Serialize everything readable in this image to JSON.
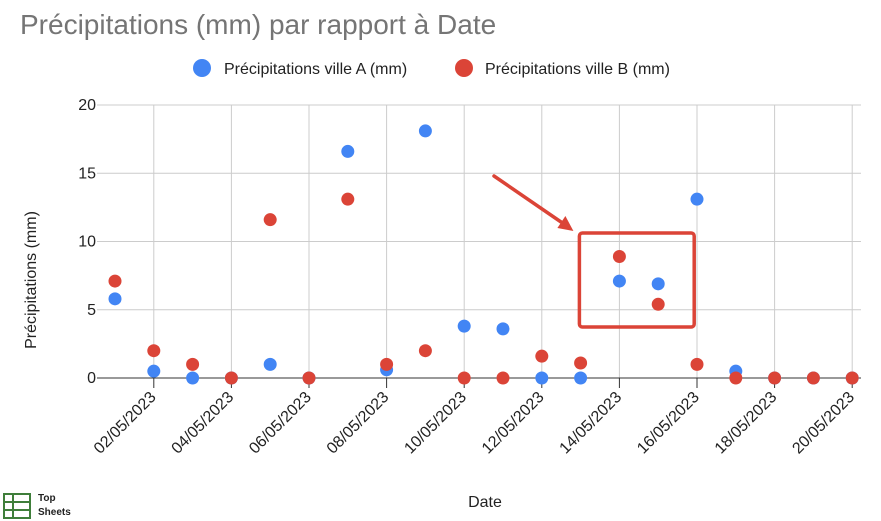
{
  "chart_data": {
    "type": "scatter",
    "title": "Précipitations (mm) par rapport à Date",
    "xlabel": "Date",
    "ylabel": "Précipitations (mm)",
    "ylim": [
      0,
      20
    ],
    "yticks": [
      0,
      5,
      10,
      15,
      20
    ],
    "xticks": [
      "02/05/2023",
      "04/05/2023",
      "06/05/2023",
      "08/05/2023",
      "10/05/2023",
      "12/05/2023",
      "14/05/2023",
      "16/05/2023",
      "18/05/2023",
      "20/05/2023"
    ],
    "x": [
      "01/05/2023",
      "02/05/2023",
      "03/05/2023",
      "04/05/2023",
      "05/05/2023",
      "06/05/2023",
      "07/05/2023",
      "08/05/2023",
      "09/05/2023",
      "10/05/2023",
      "11/05/2023",
      "12/05/2023",
      "13/05/2023",
      "14/05/2023",
      "15/05/2023",
      "16/05/2023",
      "17/05/2023",
      "18/05/2023",
      "19/05/2023",
      "20/05/2023"
    ],
    "series": [
      {
        "name": "Précipitations ville A (mm)",
        "color": "#4285f4",
        "values": [
          5.8,
          0.5,
          0.0,
          0.0,
          1.0,
          0.0,
          16.6,
          0.6,
          18.1,
          3.8,
          3.6,
          0.0,
          0.0,
          7.1,
          6.9,
          13.1,
          0.5,
          0.0,
          0.0,
          0.0
        ]
      },
      {
        "name": "Précipitations ville B (mm)",
        "color": "#db4437",
        "values": [
          7.1,
          2.0,
          1.0,
          0.0,
          11.6,
          0.0,
          13.1,
          1.0,
          2.0,
          0.0,
          0.0,
          1.6,
          1.1,
          8.9,
          5.4,
          1.0,
          0.0,
          0.0,
          0.0,
          0.0
        ]
      }
    ],
    "grid": true,
    "legend_position": "top",
    "annotation": {
      "type": "arrow-and-box",
      "color": "#db4437",
      "highlight_dates": [
        "14/05/2023",
        "15/05/2023"
      ]
    }
  },
  "watermark": {
    "line1": "Top",
    "line2": "Sheets"
  }
}
